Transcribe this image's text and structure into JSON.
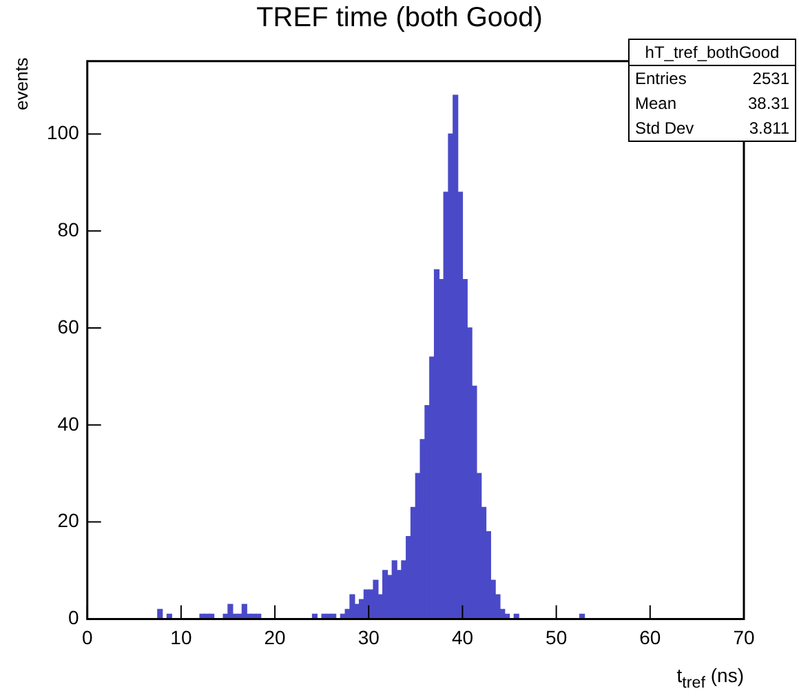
{
  "chart_data": {
    "type": "histogram",
    "title": "TREF time (both Good)",
    "xlabel": "t$_{tref}$ (ns)",
    "ylabel": "events",
    "annotations": [
      "hT_tref_bothGood",
      "Entries 2531",
      "Mean 38.31",
      "Std Dev 3.811"
    ],
    "bins": [
      0,
      0.5,
      1,
      1.5,
      2,
      2.5,
      3,
      3.5,
      4,
      4.5,
      5,
      5.5,
      6,
      6.5,
      7,
      7.5,
      8,
      8.5,
      9,
      9.5,
      10,
      10.5,
      11,
      11.5,
      12,
      12.5,
      13,
      13.5,
      14,
      14.5,
      15,
      15.5,
      16,
      16.5,
      17,
      17.5,
      18,
      18.5,
      19,
      19.5,
      20,
      20.5,
      21,
      21.5,
      22,
      22.5,
      23,
      23.5,
      24,
      24.5,
      25,
      25.5,
      26,
      26.5,
      27,
      27.5,
      28,
      28.5,
      29,
      29.5,
      30,
      30.5,
      31,
      31.5,
      32,
      32.5,
      33,
      33.5,
      34,
      34.5,
      35,
      35.5,
      36,
      36.5,
      37,
      37.5,
      38,
      38.5,
      39,
      39.5,
      40,
      40.5,
      41,
      41.5,
      42,
      42.5,
      43,
      43.5,
      44,
      44.5,
      45,
      45.5,
      46,
      46.5,
      47,
      47.5,
      48,
      48.5,
      49,
      49.5,
      50,
      50.5,
      51,
      51.5,
      52,
      52.5,
      53,
      53.5,
      54,
      54.5,
      55,
      55.5,
      56,
      56.5,
      57,
      57.5,
      58,
      58.5,
      59,
      59.5,
      60,
      60.5,
      61,
      61.5,
      62,
      62.5,
      63,
      63.5,
      64,
      64.5,
      65,
      65.5,
      66,
      66.5,
      67,
      67.5,
      68,
      68.5,
      69,
      69.5,
      70
    ],
    "values": [
      0,
      0,
      0,
      0,
      0,
      0,
      0,
      0,
      0,
      0,
      0,
      0,
      0,
      0,
      0,
      2,
      0,
      1,
      0,
      0,
      0,
      0,
      0,
      0,
      1,
      1,
      1,
      0,
      0,
      1,
      3,
      1,
      1,
      3,
      1,
      1,
      1,
      0,
      0,
      0,
      0,
      0,
      0,
      0,
      0,
      0,
      0,
      0,
      1,
      0,
      1,
      1,
      1,
      0,
      1,
      2,
      5,
      3,
      4,
      6,
      6,
      8,
      5,
      10,
      9,
      12,
      10,
      12,
      17,
      23,
      30,
      37,
      44,
      54,
      72,
      70,
      88,
      100,
      108,
      88,
      70,
      60,
      48,
      30,
      23,
      18,
      8,
      5,
      2,
      1,
      0,
      1,
      0,
      0,
      0,
      0,
      0,
      0,
      0,
      0,
      0,
      0,
      0,
      0,
      0,
      1,
      0,
      0,
      0,
      0,
      0,
      0,
      0,
      0,
      0,
      0,
      0,
      0,
      0,
      0,
      0,
      0,
      0,
      0,
      0,
      0,
      0,
      0,
      0,
      0,
      0,
      0,
      0,
      0,
      0,
      0,
      0,
      0,
      0,
      0
    ],
    "color": "#4a4ac8",
    "xlim": [
      0,
      70
    ],
    "xticks": [
      0,
      10,
      20,
      30,
      40,
      50,
      60,
      70
    ],
    "ylim": [
      0,
      115
    ],
    "yticks": [
      0,
      20,
      40,
      60,
      80,
      100
    ],
    "grid": false,
    "legend": false
  }
}
